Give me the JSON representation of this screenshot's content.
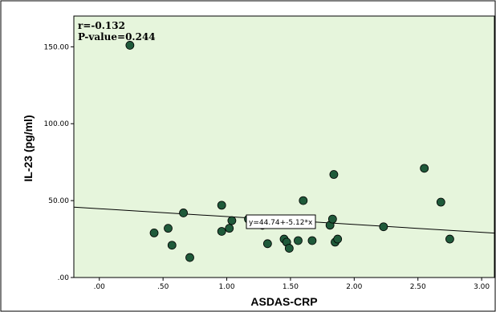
{
  "chart_data": {
    "type": "scatter",
    "xlabel": "ASDAS-CRP",
    "ylabel": "IL-23 (pg/ml)",
    "xlim": [
      -0.2,
      3.1
    ],
    "ylim": [
      0,
      170
    ],
    "x_ticks": [
      {
        "value": 0.0,
        "label": ".00"
      },
      {
        "value": 0.5,
        "label": ".50"
      },
      {
        "value": 1.0,
        "label": "1.00"
      },
      {
        "value": 1.5,
        "label": "1.50"
      },
      {
        "value": 2.0,
        "label": "2.00"
      },
      {
        "value": 2.5,
        "label": "2.50"
      },
      {
        "value": 3.0,
        "label": "3.00"
      }
    ],
    "y_ticks": [
      {
        "value": 0,
        "label": ".00"
      },
      {
        "value": 50,
        "label": "50.00"
      },
      {
        "value": 100,
        "label": "100.00"
      },
      {
        "value": 150,
        "label": "150.00"
      }
    ],
    "stats": {
      "r": "r=-0.132",
      "p": "P-value=0.244"
    },
    "regression": {
      "intercept": 44.74,
      "slope": -5.12,
      "label": "y=44.74+-5.12*x"
    },
    "points": [
      {
        "x": 0.24,
        "y": 151
      },
      {
        "x": 0.43,
        "y": 29
      },
      {
        "x": 0.54,
        "y": 32
      },
      {
        "x": 0.57,
        "y": 21
      },
      {
        "x": 0.66,
        "y": 42
      },
      {
        "x": 0.71,
        "y": 13
      },
      {
        "x": 0.96,
        "y": 47
      },
      {
        "x": 0.96,
        "y": 30
      },
      {
        "x": 1.02,
        "y": 32
      },
      {
        "x": 1.04,
        "y": 37
      },
      {
        "x": 1.17,
        "y": 38
      },
      {
        "x": 1.28,
        "y": 34
      },
      {
        "x": 1.32,
        "y": 22
      },
      {
        "x": 1.45,
        "y": 25
      },
      {
        "x": 1.47,
        "y": 23
      },
      {
        "x": 1.49,
        "y": 19
      },
      {
        "x": 1.56,
        "y": 24
      },
      {
        "x": 1.6,
        "y": 50
      },
      {
        "x": 1.67,
        "y": 24
      },
      {
        "x": 1.81,
        "y": 34
      },
      {
        "x": 1.83,
        "y": 38
      },
      {
        "x": 1.84,
        "y": 67
      },
      {
        "x": 1.85,
        "y": 23
      },
      {
        "x": 1.87,
        "y": 25
      },
      {
        "x": 2.23,
        "y": 33
      },
      {
        "x": 2.55,
        "y": 71
      },
      {
        "x": 2.68,
        "y": 49
      },
      {
        "x": 2.75,
        "y": 25
      }
    ],
    "colors": {
      "plot_background": "#e6f5dc",
      "point_fill": "#1f5a3a",
      "point_stroke": "#000000",
      "frame": "#000000"
    },
    "grid": false
  }
}
